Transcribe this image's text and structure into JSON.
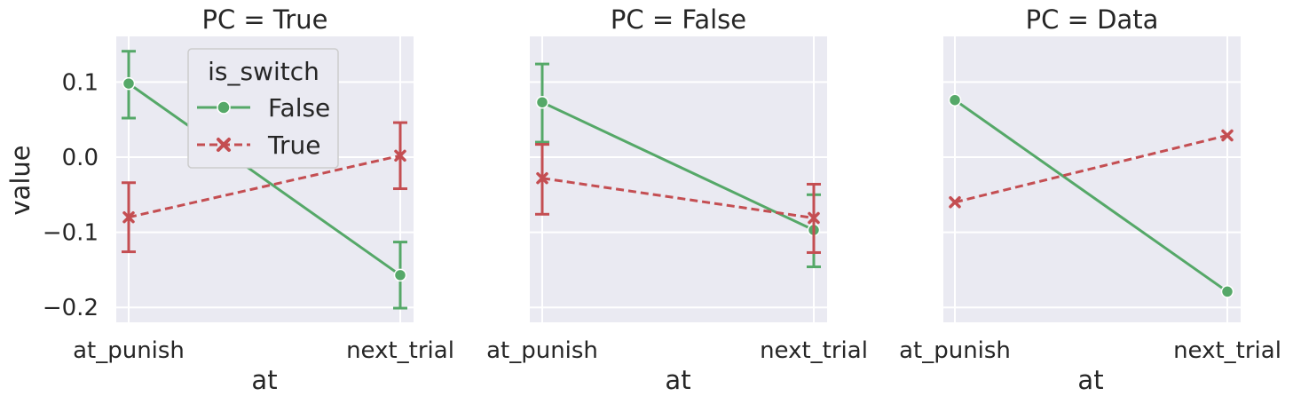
{
  "chart_data": {
    "type": "line",
    "facet_label": "PC",
    "categories": [
      "at_punish",
      "next_trial"
    ],
    "xlabel": "at",
    "ylabel": "value",
    "ylim": [
      -0.22,
      0.16
    ],
    "yticks": [
      0.1,
      0.0,
      -0.1,
      -0.2
    ],
    "ytick_labels": [
      "0.1",
      "0.0",
      "−0.1",
      "−0.2"
    ],
    "grid": true,
    "legend": {
      "title": "is_switch",
      "placement": "top-left of first panel",
      "entries": [
        "False",
        "True"
      ]
    },
    "colors": {
      "False": "#55a868",
      "True": "#c44e52"
    },
    "panels": [
      {
        "title": "PC = True",
        "series": [
          {
            "name": "False",
            "values": [
              0.098,
              -0.157
            ],
            "ci_low": [
              0.052,
              -0.201
            ],
            "ci_high": [
              0.141,
              -0.113
            ]
          },
          {
            "name": "True",
            "values": [
              -0.08,
              0.002
            ],
            "ci_low": [
              -0.126,
              -0.042
            ],
            "ci_high": [
              -0.034,
              0.046
            ]
          }
        ]
      },
      {
        "title": "PC = False",
        "series": [
          {
            "name": "False",
            "values": [
              0.073,
              -0.097
            ],
            "ci_low": [
              0.02,
              -0.146
            ],
            "ci_high": [
              0.124,
              -0.05
            ]
          },
          {
            "name": "True",
            "values": [
              -0.028,
              -0.081
            ],
            "ci_low": [
              -0.076,
              -0.127
            ],
            "ci_high": [
              0.017,
              -0.036
            ]
          }
        ]
      },
      {
        "title": "PC = Data",
        "series": [
          {
            "name": "False",
            "values": [
              0.076,
              -0.179
            ]
          },
          {
            "name": "True",
            "values": [
              -0.06,
              0.029
            ]
          }
        ]
      }
    ]
  }
}
